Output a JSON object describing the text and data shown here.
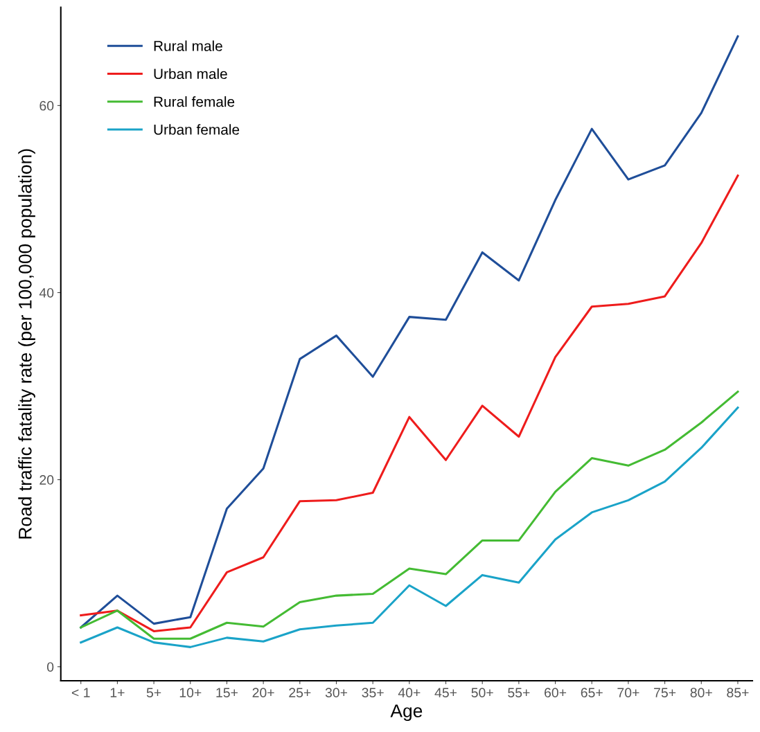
{
  "chart_data": {
    "type": "line",
    "xlabel": "Age",
    "ylabel": "Road traffic fatality rate (per 100,000 population)",
    "categories": [
      "< 1",
      "1+",
      "5+",
      "10+",
      "15+",
      "20+",
      "25+",
      "30+",
      "35+",
      "40+",
      "45+",
      "50+",
      "55+",
      "60+",
      "65+",
      "70+",
      "75+",
      "80+",
      "85+"
    ],
    "series": [
      {
        "name": "Rural male",
        "color": "#1f4e99",
        "values": [
          4.2,
          7.6,
          4.6,
          5.3,
          16.9,
          21.2,
          32.9,
          35.4,
          31.0,
          37.4,
          37.1,
          44.3,
          41.3,
          49.9,
          57.5,
          52.1,
          53.6,
          59.2,
          67.4
        ]
      },
      {
        "name": "Urban male",
        "color": "#ee1c1c",
        "values": [
          5.5,
          6.0,
          3.8,
          4.2,
          10.1,
          11.7,
          17.7,
          17.8,
          18.6,
          26.7,
          22.1,
          27.9,
          24.6,
          33.1,
          38.5,
          38.8,
          39.6,
          45.3,
          52.5
        ]
      },
      {
        "name": "Rural female",
        "color": "#44bb33",
        "values": [
          4.2,
          6.0,
          3.0,
          3.0,
          4.7,
          4.3,
          6.9,
          7.6,
          7.8,
          10.5,
          9.9,
          13.5,
          13.5,
          18.7,
          22.3,
          21.5,
          23.2,
          26.1,
          29.4
        ]
      },
      {
        "name": "Urban female",
        "color": "#1aa3c8",
        "values": [
          2.6,
          4.2,
          2.6,
          2.1,
          3.1,
          2.7,
          4.0,
          4.4,
          4.7,
          8.7,
          6.5,
          9.8,
          9.0,
          13.6,
          16.5,
          17.8,
          19.8,
          23.4,
          27.7
        ]
      }
    ],
    "ylim": [
      -1.5,
      70.5
    ],
    "yticks": [
      0,
      20,
      40,
      60
    ],
    "grid": false,
    "legend": "top left",
    "marker": "none",
    "line_style": "solid"
  }
}
